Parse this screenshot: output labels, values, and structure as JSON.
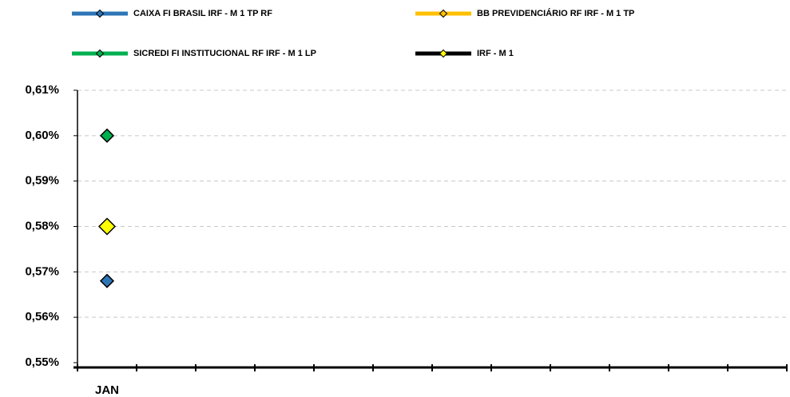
{
  "chart_data": {
    "type": "line",
    "categories": [
      "JAN",
      null,
      null,
      null,
      null,
      null,
      null,
      null,
      null,
      null,
      null,
      null
    ],
    "series": [
      {
        "name": "CAIXA FI BRASIL IRF - M 1 TP RF",
        "color": "#2e75b6",
        "marker_color": "#2e75b6",
        "values": [
          0.568,
          null,
          null,
          null,
          null,
          null,
          null,
          null,
          null,
          null,
          null,
          null
        ]
      },
      {
        "name": "BB PREVIDENCIÁRIO RF IRF - M 1 TP",
        "color": "#ffc000",
        "marker_color": "#ffc000",
        "values": [
          null,
          null,
          null,
          null,
          null,
          null,
          null,
          null,
          null,
          null,
          null,
          null
        ]
      },
      {
        "name": "SICREDI FI INSTITUCIONAL RF IRF - M 1 LP",
        "color": "#00b050",
        "marker_color": "#00b050",
        "values": [
          0.6,
          null,
          null,
          null,
          null,
          null,
          null,
          null,
          null,
          null,
          null,
          null
        ]
      },
      {
        "name": "IRF - M 1",
        "color": "#000000",
        "marker_color": "#ffff00",
        "values": [
          0.58,
          null,
          null,
          null,
          null,
          null,
          null,
          null,
          null,
          null,
          null,
          null
        ]
      }
    ],
    "ylim": [
      0.55,
      0.61
    ],
    "yticks": [
      {
        "value": 0.55,
        "label": "0,55%"
      },
      {
        "value": 0.56,
        "label": "0,56%"
      },
      {
        "value": 0.57,
        "label": "0,57%"
      },
      {
        "value": 0.58,
        "label": "0,58%"
      },
      {
        "value": 0.59,
        "label": "0,59%"
      },
      {
        "value": 0.6,
        "label": "0,60%"
      },
      {
        "value": 0.61,
        "label": "0,61%"
      }
    ],
    "grid": true
  }
}
